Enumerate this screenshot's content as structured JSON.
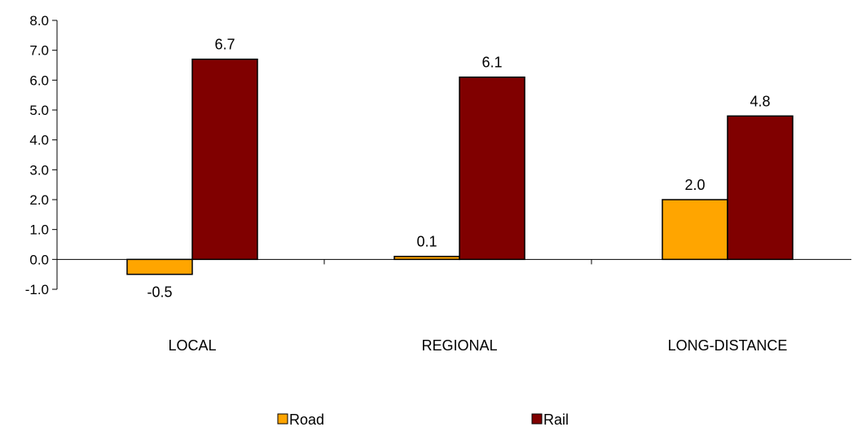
{
  "chart_data": {
    "type": "bar",
    "categories": [
      "LOCAL",
      "REGIONAL",
      "LONG-DISTANCE"
    ],
    "series": [
      {
        "name": "Road",
        "values": [
          -0.5,
          0.1,
          2.0
        ],
        "color": "#FFA500"
      },
      {
        "name": "Rail",
        "values": [
          6.7,
          6.1,
          4.8
        ],
        "color": "#800000"
      }
    ],
    "data_labels": {
      "Road": [
        "-0.5",
        "0.1",
        "2.0"
      ],
      "Rail": [
        "6.7",
        "6.1",
        "4.8"
      ]
    },
    "ylim": [
      -1.0,
      8.0
    ],
    "yticks": [
      -1.0,
      0.0,
      1.0,
      2.0,
      3.0,
      4.0,
      5.0,
      6.0,
      7.0,
      8.0
    ],
    "ytick_labels": [
      "-1.0",
      "0.0",
      "1.0",
      "2.0",
      "3.0",
      "4.0",
      "5.0",
      "6.0",
      "7.0",
      "8.0"
    ],
    "title": "",
    "xlabel": "",
    "ylabel": "",
    "grid": false,
    "legend_position": "bottom"
  }
}
